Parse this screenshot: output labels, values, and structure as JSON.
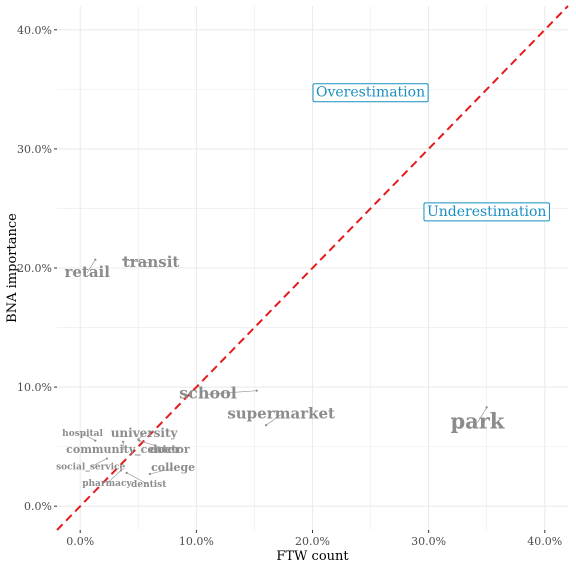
{
  "chart_data": {
    "type": "scatter",
    "title": "",
    "xlabel": "FTW count",
    "ylabel": "BNA importance",
    "xlim": [
      -0.02,
      0.42
    ],
    "ylim": [
      -0.02,
      0.42
    ],
    "x_ticks": [
      0.0,
      0.1,
      0.2,
      0.3,
      0.4
    ],
    "x_tick_labels": [
      "0.0%",
      "10.0%",
      "20.0%",
      "30.0%",
      "40.0%"
    ],
    "y_ticks": [
      0.0,
      0.1,
      0.2,
      0.3,
      0.4
    ],
    "y_tick_labels": [
      "0.0%",
      "10.0%",
      "20.0%",
      "30.0%",
      "40.0%"
    ],
    "grid": true,
    "reference_line": {
      "from": [
        -0.02,
        -0.02
      ],
      "to": [
        0.42,
        0.42
      ],
      "color": "#e41a1c",
      "style": "dashed"
    },
    "annotations": [
      {
        "text": "Overestimation",
        "x": 0.25,
        "y": 0.348
      },
      {
        "text": "Underestimation",
        "x": 0.35,
        "y": 0.248
      }
    ],
    "points": [
      {
        "name": "park",
        "x": 0.35,
        "y": 0.083,
        "lx": 0.342,
        "ly": 0.07,
        "size": 21
      },
      {
        "name": "retail",
        "x": 0.013,
        "y": 0.207,
        "lx": 0.006,
        "ly": 0.196,
        "size": 15
      },
      {
        "name": "transit",
        "x": 0.037,
        "y": 0.207,
        "lx": 0.061,
        "ly": 0.204,
        "size": 15
      },
      {
        "name": "school",
        "x": 0.152,
        "y": 0.097,
        "lx": 0.11,
        "ly": 0.094,
        "size": 16
      },
      {
        "name": "supermarket",
        "x": 0.16,
        "y": 0.068,
        "lx": 0.173,
        "ly": 0.077,
        "size": 15
      },
      {
        "name": "university",
        "x": 0.05,
        "y": 0.056,
        "lx": 0.055,
        "ly": 0.061,
        "size": 12
      },
      {
        "name": "community_center",
        "x": 0.037,
        "y": 0.054,
        "lx": 0.037,
        "ly": 0.047,
        "size": 11
      },
      {
        "name": "doctor",
        "x": 0.051,
        "y": 0.055,
        "lx": 0.077,
        "ly": 0.047,
        "size": 11
      },
      {
        "name": "hospital",
        "x": 0.013,
        "y": 0.055,
        "lx": 0.002,
        "ly": 0.061,
        "size": 9
      },
      {
        "name": "social_service",
        "x": 0.023,
        "y": 0.04,
        "lx": 0.009,
        "ly": 0.033,
        "size": 9
      },
      {
        "name": "college",
        "x": 0.06,
        "y": 0.027,
        "lx": 0.08,
        "ly": 0.032,
        "size": 11
      },
      {
        "name": "pharmacy",
        "x": 0.035,
        "y": 0.03,
        "lx": 0.023,
        "ly": 0.019,
        "size": 9
      },
      {
        "name": "dentist",
        "x": 0.04,
        "y": 0.028,
        "lx": 0.059,
        "ly": 0.018,
        "size": 9
      }
    ],
    "colors": {
      "label": "#8c8c8c",
      "annotation": "#1a8fc1",
      "reference_line": "#e41a1c",
      "grid": "#ebebeb"
    }
  }
}
